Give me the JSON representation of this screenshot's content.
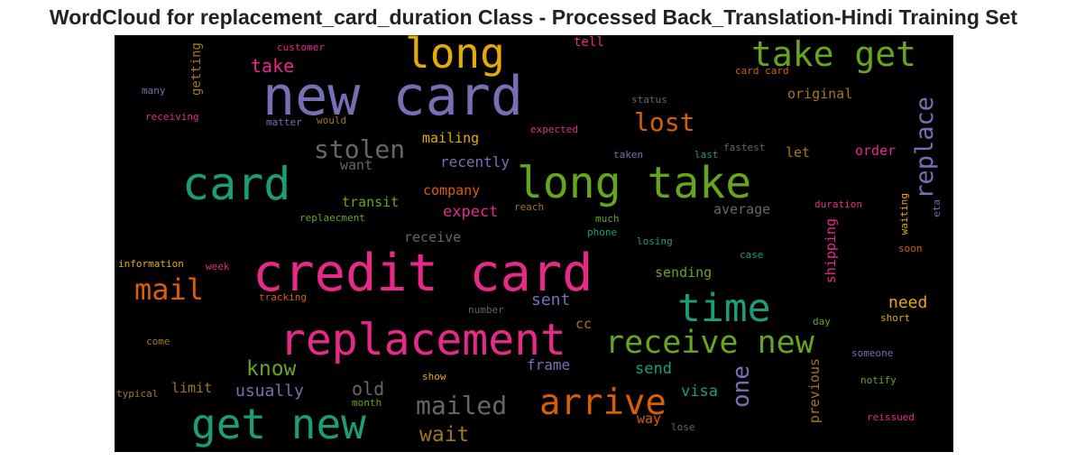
{
  "title": "WordCloud for replacement_card_duration Class - Processed Back_Translation-Hindi Training Set",
  "colors": {
    "background": "#000000",
    "palette": [
      "#e7298a",
      "#7570b3",
      "#1b9e77",
      "#66a61e",
      "#d95f02",
      "#e6ab02",
      "#a6761d",
      "#666666"
    ]
  },
  "words": {
    "credit_card": "credit card",
    "new_card": "new card",
    "replacement": "replacement",
    "long_take": "long take",
    "card": "card",
    "get_new": "get new",
    "time": "time",
    "receive_new": "receive new",
    "take_get": "take get",
    "long": "long",
    "arrive": "arrive",
    "mail": "mail",
    "mailed": "mailed",
    "stolen": "stolen",
    "lost": "lost",
    "replace": "replace",
    "one": "one",
    "know": "know",
    "wait": "wait",
    "take": "take",
    "expect": "expect",
    "recently": "recently",
    "usually": "usually",
    "old": "old",
    "sent": "sent",
    "visa": "visa",
    "send": "send",
    "need": "need",
    "frame": "frame",
    "mailing": "mailing",
    "order": "order",
    "company": "company",
    "transit": "transit",
    "sending": "sending",
    "original": "original",
    "receive": "receive",
    "average": "average",
    "want": "want",
    "limit": "limit",
    "previous": "previous",
    "shipping": "shipping",
    "let": "let",
    "getting": "getting",
    "tell": "tell",
    "cc": "cc",
    "way": "way",
    "customer": "customer",
    "card_card": "card card",
    "many": "many",
    "receiving": "receiving",
    "matter": "matter",
    "would": "would",
    "status": "status",
    "expected": "expected",
    "taken": "taken",
    "last": "last",
    "fastest": "fastest",
    "duration": "duration",
    "waiting": "waiting",
    "eta": "eta",
    "replaecment": "replaecment",
    "reach": "reach",
    "much": "much",
    "phone": "phone",
    "losing": "losing",
    "soon": "soon",
    "information": "information",
    "week": "week",
    "case": "case",
    "tracking": "tracking",
    "number": "number",
    "day": "day",
    "short": "short",
    "come": "come",
    "someone": "someone",
    "show": "show",
    "notify": "notify",
    "typical": "typical",
    "month": "month",
    "reissued": "reissued",
    "lose": "lose"
  }
}
